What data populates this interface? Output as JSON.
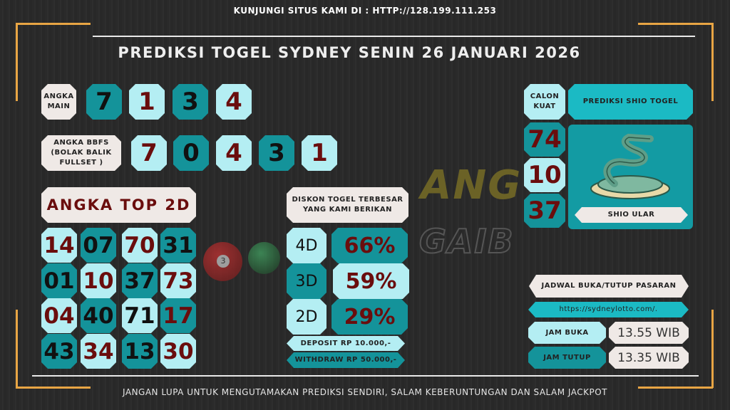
{
  "header": {
    "visit": "KUNJUNGI SITUS KAMI DI : HTTP://128.199.111.253",
    "title": "PREDIKSI TOGEL SYDNEY SENIN 26 JANUARI 2026"
  },
  "angka_main": {
    "label": "ANGKA MAIN",
    "values": [
      "7",
      "1",
      "3",
      "4"
    ]
  },
  "bbfs": {
    "label": "ANGKA BBFS (BOLAK BALIK FULLSET )",
    "values": [
      "7",
      "0",
      "4",
      "3",
      "1"
    ]
  },
  "top2d": {
    "label": "ANGKA TOP 2D",
    "values": [
      [
        "14",
        "07",
        "70",
        "31"
      ],
      [
        "01",
        "10",
        "37",
        "73"
      ],
      [
        "04",
        "40",
        "71",
        "17"
      ],
      [
        "43",
        "34",
        "13",
        "30"
      ]
    ]
  },
  "diskon": {
    "label": "DISKON TOGEL TERBESAR YANG KAMI BERIKAN",
    "rows": [
      {
        "type": "4D",
        "value": "66%"
      },
      {
        "type": "3D",
        "value": "59%"
      },
      {
        "type": "2D",
        "value": "29%"
      }
    ],
    "deposit": "DEPOSIT RP 10.000,-",
    "withdraw": "WITHDRAW RP 50.000,-"
  },
  "calon_kuat": {
    "label": "CALON KUAT",
    "values": [
      "74",
      "10",
      "37"
    ]
  },
  "shio": {
    "label": "PREDIKSI SHIO TOGEL",
    "name": "SHIO ULAR",
    "icon": "snake-icon"
  },
  "jadwal": {
    "label": "JADWAL BUKA/TUTUP PASARAN",
    "url": "https://sydneylotto.com/.",
    "buka_label": "JAM BUKA",
    "buka": "13.55 WIB",
    "tutup_label": "JAM TUTUP",
    "tutup": "13.35 WIB"
  },
  "watermark": "ANGKA GAIB",
  "footer": "JANGAN LUPA UNTUK MENGUTAMAKAN PREDIKSI SENDIRI, SALAM KEBERUNTUNGAN DAN SALAM JACKPOT",
  "colors": {
    "dark_teal": "#14939a",
    "light_teal": "#b4eef3",
    "cream": "#efe9e6",
    "maroon": "#6a0d0d",
    "frame": "#e8a544"
  }
}
